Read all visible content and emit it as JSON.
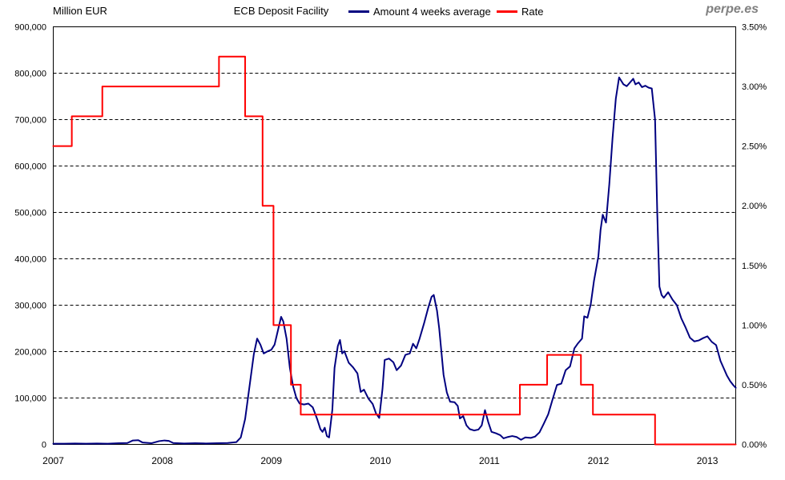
{
  "header": {
    "y_left_unit": "Million EUR",
    "title": "ECB Deposit Facility",
    "watermark": "perpe.es"
  },
  "legend": [
    {
      "label": "Amount 4 weeks average",
      "color": "#000080"
    },
    {
      "label": "Rate",
      "color": "#FF0000"
    }
  ],
  "colors": {
    "amount_line": "#000080",
    "rate_line": "#FF0000",
    "grid": "#000000",
    "border": "#000000",
    "watermark": "#808080"
  },
  "chart_data": {
    "type": "line",
    "title": "ECB Deposit Facility",
    "legend_position": "top",
    "grid": "horizontal-dashed",
    "x_axis": {
      "range": [
        2007.0,
        2013.26
      ],
      "ticks": [
        2007,
        2008,
        2009,
        2010,
        2011,
        2012,
        2013
      ],
      "tick_labels": [
        "2007",
        "2008",
        "2009",
        "2010",
        "2011",
        "2012",
        "2013"
      ]
    },
    "y_left": {
      "label": "Million EUR",
      "range": [
        0,
        900000
      ],
      "tick_step": 100000,
      "tick_labels": [
        "0",
        "100,000",
        "200,000",
        "300,000",
        "400,000",
        "500,000",
        "600,000",
        "700,000",
        "800,000",
        "900,000"
      ]
    },
    "y_right": {
      "label": "Rate",
      "range": [
        0,
        3.5
      ],
      "tick_step": 0.5,
      "tick_labels": [
        "0.00%",
        "0.50%",
        "1.00%",
        "1.50%",
        "2.00%",
        "2.50%",
        "3.00%",
        "3.50%"
      ]
    },
    "series": [
      {
        "name": "Amount 4 weeks average",
        "axis": "left",
        "color": "#000080",
        "style": "line",
        "points": [
          [
            2007.0,
            1500
          ],
          [
            2007.1,
            1500
          ],
          [
            2007.2,
            2000
          ],
          [
            2007.3,
            1500
          ],
          [
            2007.4,
            2000
          ],
          [
            2007.5,
            1500
          ],
          [
            2007.6,
            2500
          ],
          [
            2007.68,
            3000
          ],
          [
            2007.73,
            8500
          ],
          [
            2007.78,
            9000
          ],
          [
            2007.82,
            4000
          ],
          [
            2007.9,
            2500
          ],
          [
            2007.97,
            7000
          ],
          [
            2008.02,
            8500
          ],
          [
            2008.06,
            7500
          ],
          [
            2008.1,
            3000
          ],
          [
            2008.2,
            2000
          ],
          [
            2008.3,
            2500
          ],
          [
            2008.4,
            2000
          ],
          [
            2008.5,
            2500
          ],
          [
            2008.6,
            3000
          ],
          [
            2008.68,
            5000
          ],
          [
            2008.72,
            15000
          ],
          [
            2008.76,
            55000
          ],
          [
            2008.8,
            125000
          ],
          [
            2008.84,
            195000
          ],
          [
            2008.87,
            228000
          ],
          [
            2008.9,
            215000
          ],
          [
            2008.93,
            196000
          ],
          [
            2008.97,
            201000
          ],
          [
            2009.0,
            204000
          ],
          [
            2009.03,
            215000
          ],
          [
            2009.06,
            245000
          ],
          [
            2009.09,
            275000
          ],
          [
            2009.11,
            265000
          ],
          [
            2009.14,
            228000
          ],
          [
            2009.17,
            165000
          ],
          [
            2009.2,
            125000
          ],
          [
            2009.23,
            100000
          ],
          [
            2009.26,
            88000
          ],
          [
            2009.3,
            86000
          ],
          [
            2009.34,
            88000
          ],
          [
            2009.38,
            80000
          ],
          [
            2009.42,
            55000
          ],
          [
            2009.45,
            33000
          ],
          [
            2009.47,
            27000
          ],
          [
            2009.49,
            36000
          ],
          [
            2009.51,
            18000
          ],
          [
            2009.53,
            15000
          ],
          [
            2009.56,
            75000
          ],
          [
            2009.58,
            165000
          ],
          [
            2009.61,
            212000
          ],
          [
            2009.63,
            225000
          ],
          [
            2009.65,
            196000
          ],
          [
            2009.67,
            201000
          ],
          [
            2009.71,
            176000
          ],
          [
            2009.75,
            166000
          ],
          [
            2009.79,
            153000
          ],
          [
            2009.82,
            113000
          ],
          [
            2009.85,
            118000
          ],
          [
            2009.89,
            99000
          ],
          [
            2009.93,
            87000
          ],
          [
            2009.96,
            67000
          ],
          [
            2009.99,
            57000
          ],
          [
            2010.02,
            120000
          ],
          [
            2010.04,
            182000
          ],
          [
            2010.08,
            185000
          ],
          [
            2010.12,
            177000
          ],
          [
            2010.15,
            160000
          ],
          [
            2010.19,
            170000
          ],
          [
            2010.23,
            193000
          ],
          [
            2010.27,
            196000
          ],
          [
            2010.3,
            217000
          ],
          [
            2010.33,
            207000
          ],
          [
            2010.36,
            228000
          ],
          [
            2010.4,
            260000
          ],
          [
            2010.44,
            295000
          ],
          [
            2010.47,
            318000
          ],
          [
            2010.49,
            322000
          ],
          [
            2010.52,
            288000
          ],
          [
            2010.54,
            250000
          ],
          [
            2010.56,
            200000
          ],
          [
            2010.58,
            150000
          ],
          [
            2010.61,
            112000
          ],
          [
            2010.64,
            92000
          ],
          [
            2010.68,
            91000
          ],
          [
            2010.71,
            83000
          ],
          [
            2010.73,
            56000
          ],
          [
            2010.76,
            61000
          ],
          [
            2010.79,
            41000
          ],
          [
            2010.82,
            33000
          ],
          [
            2010.86,
            30000
          ],
          [
            2010.9,
            32000
          ],
          [
            2010.93,
            41000
          ],
          [
            2010.96,
            74000
          ],
          [
            2010.99,
            48000
          ],
          [
            2011.02,
            27000
          ],
          [
            2011.06,
            24000
          ],
          [
            2011.1,
            20000
          ],
          [
            2011.13,
            13000
          ],
          [
            2011.17,
            16000
          ],
          [
            2011.21,
            18000
          ],
          [
            2011.25,
            16000
          ],
          [
            2011.29,
            10000
          ],
          [
            2011.33,
            15000
          ],
          [
            2011.38,
            14000
          ],
          [
            2011.42,
            17000
          ],
          [
            2011.46,
            26000
          ],
          [
            2011.5,
            45000
          ],
          [
            2011.54,
            65000
          ],
          [
            2011.58,
            97000
          ],
          [
            2011.62,
            128000
          ],
          [
            2011.66,
            131000
          ],
          [
            2011.7,
            160000
          ],
          [
            2011.74,
            168000
          ],
          [
            2011.78,
            207000
          ],
          [
            2011.81,
            217000
          ],
          [
            2011.85,
            228000
          ],
          [
            2011.87,
            276000
          ],
          [
            2011.9,
            273000
          ],
          [
            2011.93,
            302000
          ],
          [
            2011.96,
            353000
          ],
          [
            2012.0,
            405000
          ],
          [
            2012.02,
            462000
          ],
          [
            2012.04,
            495000
          ],
          [
            2012.07,
            478000
          ],
          [
            2012.1,
            560000
          ],
          [
            2012.13,
            660000
          ],
          [
            2012.16,
            745000
          ],
          [
            2012.19,
            791000
          ],
          [
            2012.23,
            776000
          ],
          [
            2012.26,
            772000
          ],
          [
            2012.29,
            780000
          ],
          [
            2012.32,
            788000
          ],
          [
            2012.34,
            776000
          ],
          [
            2012.37,
            780000
          ],
          [
            2012.4,
            770000
          ],
          [
            2012.43,
            773000
          ],
          [
            2012.46,
            769000
          ],
          [
            2012.49,
            767000
          ],
          [
            2012.52,
            700000
          ],
          [
            2012.54,
            500000
          ],
          [
            2012.56,
            340000
          ],
          [
            2012.58,
            322000
          ],
          [
            2012.6,
            316000
          ],
          [
            2012.64,
            328000
          ],
          [
            2012.68,
            312000
          ],
          [
            2012.72,
            300000
          ],
          [
            2012.76,
            272000
          ],
          [
            2012.8,
            252000
          ],
          [
            2012.84,
            230000
          ],
          [
            2012.88,
            222000
          ],
          [
            2012.92,
            224000
          ],
          [
            2012.96,
            229000
          ],
          [
            2013.0,
            233000
          ],
          [
            2013.04,
            221000
          ],
          [
            2013.08,
            214000
          ],
          [
            2013.12,
            180000
          ],
          [
            2013.15,
            164000
          ],
          [
            2013.18,
            148000
          ],
          [
            2013.21,
            136000
          ],
          [
            2013.24,
            127000
          ],
          [
            2013.26,
            122000
          ]
        ]
      },
      {
        "name": "Rate",
        "axis": "right",
        "color": "#FF0000",
        "style": "step",
        "points": [
          [
            2007.0,
            2.5
          ],
          [
            2007.17,
            2.75
          ],
          [
            2007.45,
            3.0
          ],
          [
            2008.52,
            3.25
          ],
          [
            2008.76,
            2.75
          ],
          [
            2008.92,
            2.0
          ],
          [
            2009.02,
            1.0
          ],
          [
            2009.18,
            0.5
          ],
          [
            2009.27,
            0.25
          ],
          [
            2011.28,
            0.5
          ],
          [
            2011.53,
            0.75
          ],
          [
            2011.84,
            0.5
          ],
          [
            2011.95,
            0.25
          ],
          [
            2012.52,
            0.0
          ],
          [
            2013.26,
            0.0
          ]
        ]
      }
    ]
  }
}
